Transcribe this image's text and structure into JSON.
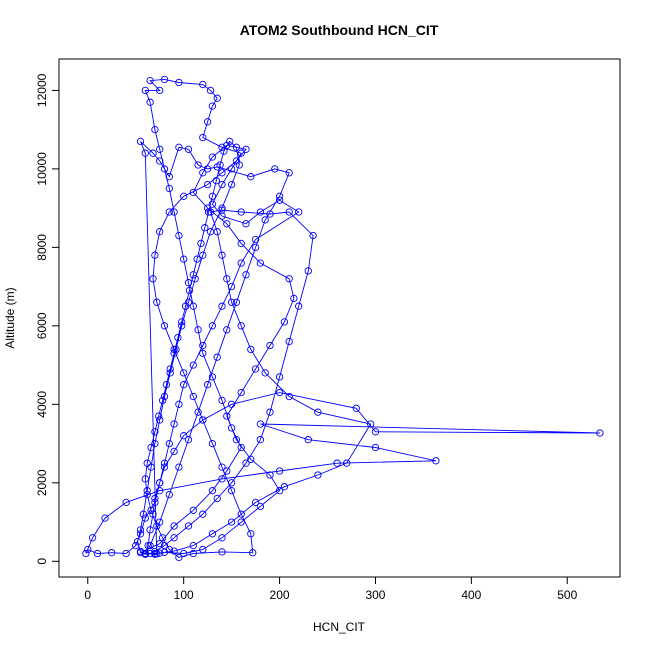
{
  "chart_data": {
    "type": "line",
    "title": "ATOM2 Southbound HCN_CIT",
    "xlabel": "HCN_CIT",
    "ylabel": "Altitude (m)",
    "xlim": [
      -30,
      555
    ],
    "ylim": [
      -400,
      12800
    ],
    "xticks": [
      0,
      100,
      200,
      300,
      400,
      500
    ],
    "yticks": [
      0,
      2000,
      4000,
      6000,
      8000,
      10000,
      12000
    ],
    "grid": false,
    "color": "#0000ff",
    "series": [
      {
        "values": [
          [
            70,
            200
          ],
          [
            60,
            180
          ],
          [
            55,
            220
          ],
          [
            75,
            450
          ],
          [
            90,
            900
          ],
          [
            110,
            1300
          ],
          [
            130,
            1800
          ],
          [
            145,
            2300
          ],
          [
            160,
            2900
          ],
          [
            150,
            3400
          ],
          [
            140,
            4100
          ],
          [
            130,
            4700
          ],
          [
            120,
            5300
          ],
          [
            115,
            5900
          ],
          [
            110,
            6500
          ],
          [
            105,
            7100
          ],
          [
            100,
            7700
          ],
          [
            95,
            8300
          ],
          [
            90,
            8900
          ],
          [
            85,
            9500
          ],
          [
            80,
            10000
          ],
          [
            75,
            10500
          ],
          [
            70,
            11000
          ],
          [
            65,
            11700
          ],
          [
            60,
            12000
          ],
          [
            75,
            12000
          ],
          [
            65,
            12250
          ],
          [
            80,
            12280
          ],
          [
            95,
            12200
          ],
          [
            120,
            12150
          ],
          [
            128,
            12000
          ],
          [
            135,
            11800
          ],
          [
            130,
            11600
          ],
          [
            125,
            11200
          ],
          [
            120,
            10800
          ],
          [
            140,
            10550
          ],
          [
            160,
            10400
          ],
          [
            150,
            10000
          ],
          [
            140,
            9600
          ],
          [
            130,
            9100
          ],
          [
            140,
            8800
          ],
          [
            165,
            8600
          ],
          [
            180,
            8900
          ],
          [
            200,
            9200
          ],
          [
            220,
            8900
          ],
          [
            175,
            8200
          ],
          [
            160,
            7600
          ],
          [
            150,
            7000
          ],
          [
            140,
            6500
          ],
          [
            130,
            6000
          ],
          [
            120,
            5500
          ],
          [
            110,
            5000
          ],
          [
            100,
            4500
          ],
          [
            95,
            4000
          ],
          [
            90,
            3500
          ],
          [
            85,
            3000
          ],
          [
            80,
            2500
          ],
          [
            75,
            2000
          ],
          [
            70,
            1500
          ],
          [
            60,
            1100
          ],
          [
            55,
            700
          ],
          [
            50,
            400
          ],
          [
            40,
            200
          ],
          [
            25,
            220
          ],
          [
            10,
            200
          ],
          [
            0,
            300
          ],
          [
            -2,
            200
          ],
          [
            5,
            600
          ],
          [
            18,
            1100
          ],
          [
            40,
            1500
          ],
          [
            75,
            1800
          ],
          [
            140,
            2100
          ],
          [
            200,
            2300
          ],
          [
            260,
            2500
          ],
          [
            363,
            2560
          ],
          [
            300,
            2900
          ],
          [
            230,
            3100
          ],
          [
            180,
            3500
          ],
          [
            534,
            3270
          ],
          [
            300,
            3300
          ],
          [
            280,
            3900
          ],
          [
            200,
            4300
          ],
          [
            150,
            4000
          ],
          [
            120,
            3600
          ],
          [
            100,
            3200
          ],
          [
            90,
            2800
          ],
          [
            80,
            2400
          ],
          [
            75,
            2000
          ],
          [
            70,
            1600
          ],
          [
            68,
            1200
          ],
          [
            65,
            800
          ],
          [
            63,
            400
          ],
          [
            60,
            200
          ],
          [
            70,
            180
          ],
          [
            80,
            230
          ],
          [
            100,
            200
          ],
          [
            120,
            300
          ],
          [
            140,
            600
          ],
          [
            160,
            1000
          ],
          [
            180,
            1400
          ],
          [
            200,
            1800
          ],
          [
            190,
            2200
          ],
          [
            170,
            2600
          ],
          [
            155,
            3100
          ],
          [
            145,
            3700
          ],
          [
            160,
            4300
          ],
          [
            175,
            4900
          ],
          [
            190,
            5500
          ],
          [
            205,
            6100
          ],
          [
            215,
            6700
          ],
          [
            210,
            7200
          ],
          [
            180,
            7600
          ],
          [
            160,
            8100
          ],
          [
            145,
            8600
          ],
          [
            125,
            9000
          ],
          [
            110,
            9400
          ],
          [
            120,
            9900
          ],
          [
            130,
            10300
          ],
          [
            145,
            10600
          ],
          [
            165,
            10500
          ],
          [
            155,
            10200
          ],
          [
            140,
            9900
          ],
          [
            125,
            9600
          ],
          [
            100,
            9300
          ],
          [
            85,
            8900
          ],
          [
            75,
            8400
          ],
          [
            70,
            7800
          ],
          [
            68,
            7200
          ],
          [
            72,
            6600
          ],
          [
            80,
            6000
          ],
          [
            90,
            5400
          ],
          [
            100,
            4800
          ],
          [
            110,
            4200
          ],
          [
            120,
            3600
          ],
          [
            130,
            3000
          ],
          [
            140,
            2400
          ],
          [
            150,
            1800
          ],
          [
            160,
            1200
          ],
          [
            170,
            700
          ],
          [
            172,
            220
          ],
          [
            140,
            240
          ],
          [
            110,
            200
          ],
          [
            95,
            100
          ],
          [
            85,
            300
          ],
          [
            78,
            600
          ],
          [
            72,
            900
          ],
          [
            66,
            1300
          ],
          [
            62,
            1700
          ],
          [
            60,
            2100
          ],
          [
            62,
            2500
          ],
          [
            66,
            2900
          ],
          [
            70,
            3300
          ],
          [
            74,
            3700
          ],
          [
            78,
            4100
          ],
          [
            82,
            4500
          ],
          [
            86,
            4900
          ],
          [
            90,
            5300
          ],
          [
            94,
            5700
          ],
          [
            98,
            6100
          ],
          [
            102,
            6500
          ],
          [
            106,
            6900
          ],
          [
            110,
            7300
          ],
          [
            114,
            7700
          ],
          [
            118,
            8100
          ],
          [
            122,
            8500
          ],
          [
            126,
            8900
          ],
          [
            130,
            9300
          ],
          [
            134,
            9700
          ],
          [
            138,
            10100
          ],
          [
            142,
            10450
          ],
          [
            148,
            10700
          ],
          [
            155,
            10550
          ],
          [
            158,
            10100
          ],
          [
            150,
            9600
          ],
          [
            140,
            9000
          ],
          [
            128,
            8400
          ],
          [
            120,
            7800
          ],
          [
            112,
            7200
          ],
          [
            105,
            6600
          ],
          [
            98,
            6000
          ],
          [
            92,
            5400
          ],
          [
            86,
            4800
          ],
          [
            80,
            4200
          ],
          [
            75,
            3600
          ],
          [
            70,
            3000
          ],
          [
            66,
            2400
          ],
          [
            62,
            1800
          ],
          [
            58,
            1200
          ],
          [
            55,
            800
          ],
          [
            52,
            500
          ],
          [
            55,
            250
          ],
          [
            60,
            200
          ],
          [
            75,
            210
          ],
          [
            90,
            260
          ],
          [
            110,
            400
          ],
          [
            130,
            700
          ],
          [
            150,
            1000
          ],
          [
            175,
            1500
          ],
          [
            205,
            1900
          ],
          [
            240,
            2200
          ],
          [
            270,
            2500
          ],
          [
            295,
            3500
          ],
          [
            240,
            3800
          ],
          [
            210,
            4200
          ],
          [
            185,
            4800
          ],
          [
            170,
            5400
          ],
          [
            160,
            6000
          ],
          [
            150,
            6600
          ],
          [
            145,
            7200
          ],
          [
            140,
            7800
          ],
          [
            135,
            8400
          ],
          [
            128,
            8900
          ],
          [
            140,
            8950
          ],
          [
            160,
            8900
          ],
          [
            190,
            8850
          ],
          [
            210,
            8900
          ],
          [
            235,
            8300
          ],
          [
            230,
            7400
          ],
          [
            220,
            6500
          ],
          [
            210,
            5600
          ],
          [
            200,
            4700
          ],
          [
            190,
            3800
          ],
          [
            180,
            3100
          ],
          [
            165,
            2500
          ],
          [
            150,
            2000
          ],
          [
            135,
            1600
          ],
          [
            120,
            1200
          ],
          [
            105,
            900
          ],
          [
            90,
            600
          ],
          [
            80,
            400
          ],
          [
            70,
            250
          ],
          [
            65,
            200
          ],
          [
            72,
            190
          ],
          [
            60,
            10400
          ],
          [
            55,
            10700
          ],
          [
            68,
            10400
          ],
          [
            75,
            10200
          ],
          [
            85,
            9800
          ],
          [
            95,
            10550
          ],
          [
            105,
            10500
          ],
          [
            115,
            10100
          ],
          [
            125,
            10000
          ],
          [
            135,
            10050
          ],
          [
            170,
            9800
          ],
          [
            195,
            10000
          ],
          [
            210,
            9900
          ],
          [
            200,
            9300
          ],
          [
            185,
            8700
          ],
          [
            175,
            8000
          ],
          [
            165,
            7300
          ],
          [
            155,
            6600
          ],
          [
            145,
            5900
          ],
          [
            135,
            5200
          ],
          [
            125,
            4500
          ],
          [
            115,
            3800
          ],
          [
            105,
            3100
          ],
          [
            95,
            2400
          ],
          [
            85,
            1700
          ],
          [
            75,
            1000
          ],
          [
            65,
            400
          ],
          [
            60,
            180
          ]
        ]
      }
    ]
  }
}
